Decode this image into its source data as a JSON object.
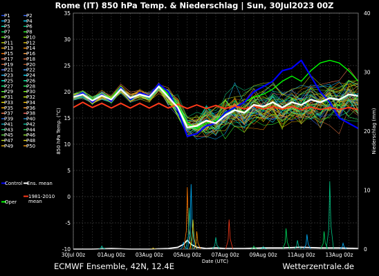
{
  "colors": {
    "background": "#000000",
    "grid": "#3a3a3a",
    "mean": "#ffffff",
    "climate_mean": "#ff3a1a",
    "control": "#0000ff",
    "oper": "#00ff00"
  },
  "chart_data": {
    "type": "line",
    "title": "Rome  (IT)  850 hPa Temp. & Niederschlag | Sun, 30Jul2023 00Z",
    "xlabel": "Date (UTC)",
    "ylabel": "850 hPa Temp. (°C)",
    "y2label": "Niederschlag (mm)",
    "ylim": [
      -10,
      35
    ],
    "y2lim": [
      0,
      40
    ],
    "yticks": [
      -10,
      -5,
      0,
      5,
      10,
      15,
      20,
      25,
      30,
      35
    ],
    "y2ticks": [
      0,
      10,
      20,
      30,
      40
    ],
    "xlim": [
      0,
      15
    ],
    "xticks": [
      {
        "x": 0,
        "label": "30Jul 00z"
      },
      {
        "x": 2,
        "label": "01Aug 00z"
      },
      {
        "x": 4,
        "label": "03Aug 00z"
      },
      {
        "x": 6,
        "label": "05Aug 00z"
      },
      {
        "x": 8,
        "label": "07Aug 00z"
      },
      {
        "x": 10,
        "label": "09Aug 00z"
      },
      {
        "x": 12,
        "label": "11Aug 00z"
      },
      {
        "x": 14,
        "label": "13Aug 00z"
      }
    ],
    "grid": true,
    "legend_position": "left",
    "legend": [
      {
        "label": "P1",
        "color": "#2050ff"
      },
      {
        "label": "P2",
        "color": "#3f6fff"
      },
      {
        "label": "P3",
        "color": "#00b4ff"
      },
      {
        "label": "P4",
        "color": "#00d8ff"
      },
      {
        "label": "P5",
        "color": "#00e6c0"
      },
      {
        "label": "P6",
        "color": "#00cc88"
      },
      {
        "label": "P7",
        "color": "#00e060"
      },
      {
        "label": "P8",
        "color": "#30ff30"
      },
      {
        "label": "P9",
        "color": "#60f000"
      },
      {
        "label": "P10",
        "color": "#90e000"
      },
      {
        "label": "P11",
        "color": "#c0d000"
      },
      {
        "label": "P12",
        "color": "#e0c000"
      },
      {
        "label": "P13",
        "color": "#f0a800"
      },
      {
        "label": "P14",
        "color": "#ff9000"
      },
      {
        "label": "P15",
        "color": "#ff7800"
      },
      {
        "label": "P16",
        "color": "#ffa040"
      },
      {
        "label": "P17",
        "color": "#ff8060"
      },
      {
        "label": "P18",
        "color": "#e07040"
      },
      {
        "label": "P19",
        "color": "#d06030"
      },
      {
        "label": "P20",
        "color": "#b05020"
      },
      {
        "label": "P21",
        "color": "#6080ff"
      },
      {
        "label": "P22",
        "color": "#40a0ff"
      },
      {
        "label": "P23",
        "color": "#20c0ff"
      },
      {
        "label": "P24",
        "color": "#00e0ff"
      },
      {
        "label": "P25",
        "color": "#00ffe0"
      },
      {
        "label": "P26",
        "color": "#00ffb0"
      },
      {
        "label": "P27",
        "color": "#00ff80"
      },
      {
        "label": "P28",
        "color": "#20ff60"
      },
      {
        "label": "P29",
        "color": "#50ff40"
      },
      {
        "label": "P30",
        "color": "#80ff20"
      },
      {
        "label": "P31",
        "color": "#b0ff10"
      },
      {
        "label": "P32",
        "color": "#d0f000"
      },
      {
        "label": "P33",
        "color": "#f0e000"
      },
      {
        "label": "P34",
        "color": "#ffc800"
      },
      {
        "label": "P35",
        "color": "#ffb000"
      },
      {
        "label": "P36",
        "color": "#ff9830"
      },
      {
        "label": "P37",
        "color": "#ff8050"
      },
      {
        "label": "P38",
        "color": "#ff6860"
      },
      {
        "label": "P39",
        "color": "#3070e0"
      },
      {
        "label": "P40",
        "color": "#2090d0"
      },
      {
        "label": "P41",
        "color": "#10b0c0"
      },
      {
        "label": "P42",
        "color": "#00c8a0"
      },
      {
        "label": "P43",
        "color": "#10d080"
      },
      {
        "label": "P44",
        "color": "#30d860"
      },
      {
        "label": "P45",
        "color": "#60e040"
      },
      {
        "label": "P46",
        "color": "#90e830"
      },
      {
        "label": "P47",
        "color": "#c0e020"
      },
      {
        "label": "P48",
        "color": "#e0d010"
      },
      {
        "label": "P49",
        "color": "#f0b810"
      },
      {
        "label": "P50",
        "color": "#ffa010"
      },
      {
        "label": "Control",
        "color": "#0000ff"
      },
      {
        "label": "Ens. mean",
        "color": "#ffffff"
      },
      {
        "label": "1981-2010 mean",
        "color": "#ff3a1a"
      },
      {
        "label": "Oper",
        "color": "#00ff00"
      }
    ],
    "series": [
      {
        "name": "Ens. mean",
        "color": "#ffffff",
        "x": [
          0,
          0.5,
          1,
          1.5,
          2,
          2.5,
          3,
          3.5,
          4,
          4.5,
          5,
          5.5,
          6,
          6.5,
          7,
          7.5,
          8,
          8.5,
          9,
          9.5,
          10,
          10.5,
          11,
          11.5,
          12,
          12.5,
          13,
          13.5,
          14,
          14.5,
          15
        ],
        "values": [
          19.0,
          19.5,
          18.3,
          19.3,
          18.5,
          20.5,
          18.8,
          19.5,
          19.0,
          21.0,
          19.0,
          17.0,
          13.2,
          13.5,
          14.5,
          14.0,
          15.5,
          16.5,
          16.0,
          17.5,
          17.2,
          18.0,
          17.0,
          18.0,
          17.5,
          18.5,
          18.0,
          18.8,
          18.5,
          19.5,
          19.2
        ]
      },
      {
        "name": "1981-2010 mean",
        "color": "#ff3a1a",
        "x": [
          0,
          0.5,
          1,
          1.5,
          2,
          2.5,
          3,
          3.5,
          4,
          4.5,
          5,
          5.5,
          6,
          6.5,
          7,
          7.5,
          8,
          8.5,
          9,
          9.5,
          10,
          10.5,
          11,
          11.5,
          12,
          12.5,
          13,
          13.5,
          14,
          14.5,
          15
        ],
        "values": [
          17.0,
          18.0,
          17.0,
          17.8,
          16.9,
          17.8,
          16.9,
          17.8,
          16.9,
          17.8,
          16.9,
          17.6,
          16.8,
          17.5,
          16.8,
          17.4,
          16.8,
          17.3,
          16.7,
          17.3,
          16.7,
          17.2,
          16.7,
          17.2,
          16.6,
          17.1,
          16.6,
          17.0,
          16.6,
          17.0,
          16.6
        ]
      },
      {
        "name": "Control",
        "color": "#0000ff",
        "x": [
          0,
          0.5,
          1,
          1.5,
          2,
          2.5,
          3,
          3.5,
          4,
          4.5,
          5,
          5.5,
          6,
          6.5,
          7,
          7.5,
          8,
          8.5,
          9,
          9.5,
          10,
          10.5,
          11,
          11.5,
          12,
          12.5,
          13,
          13.5,
          14,
          14.5,
          15
        ],
        "values": [
          19.0,
          19.8,
          18.0,
          19.5,
          18.2,
          20.8,
          18.5,
          19.8,
          19.2,
          21.5,
          20.0,
          16.5,
          11.5,
          12.0,
          13.5,
          14.0,
          16.0,
          17.0,
          18.0,
          20.0,
          21.0,
          22.0,
          24.0,
          24.5,
          26.0,
          23.0,
          20.0,
          18.0,
          15.0,
          14.0,
          13.0
        ]
      },
      {
        "name": "Oper",
        "color": "#00ff00",
        "x": [
          0,
          0.5,
          1,
          1.5,
          2,
          2.5,
          3,
          3.5,
          4,
          4.5,
          5,
          5.5,
          6,
          6.5,
          7,
          7.5,
          8,
          8.5,
          9,
          9.5,
          10,
          10.5,
          11,
          11.5,
          12,
          12.5,
          13,
          13.5,
          14,
          14.5,
          15
        ],
        "values": [
          19.2,
          19.6,
          18.5,
          19.4,
          18.7,
          21.0,
          18.6,
          19.6,
          19.2,
          21.2,
          19.5,
          17.5,
          14.0,
          13.0,
          14.0,
          14.5,
          16.0,
          17.0,
          18.0,
          19.0,
          19.5,
          20.5,
          22.0,
          23.0,
          22.0,
          24.0,
          25.5,
          26.0,
          25.5,
          24.0,
          22.0
        ]
      }
    ],
    "precip_mean": {
      "name": "Ens. mean precipitation",
      "color": "#ffffff",
      "axis": "y2",
      "x": [
        0,
        1,
        2,
        3,
        4,
        5,
        5.5,
        5.8,
        6,
        6.2,
        6.5,
        7,
        7.5,
        8,
        9,
        10,
        11,
        12,
        13,
        14,
        15
      ],
      "values": [
        0,
        0,
        0.1,
        0,
        0,
        0.1,
        0.3,
        0.8,
        1.5,
        0.8,
        0.3,
        0.1,
        0.2,
        0.1,
        0.1,
        0.2,
        0.2,
        0.3,
        0.2,
        0.2,
        0.1
      ]
    },
    "precip_peaks": [
      {
        "x": 1.5,
        "value": 0.5,
        "color": "#00e6c0"
      },
      {
        "x": 4.2,
        "value": 0.2,
        "color": "#e0c000"
      },
      {
        "x": 5.8,
        "value": 1.2,
        "color": "#00b4ff"
      },
      {
        "x": 6.0,
        "value": 10.5,
        "color": "#ff7800"
      },
      {
        "x": 6.1,
        "value": 7.0,
        "color": "#00c8a0"
      },
      {
        "x": 6.2,
        "value": 11.0,
        "color": "#00b4ff"
      },
      {
        "x": 6.3,
        "value": 5.0,
        "color": "#e0d010"
      },
      {
        "x": 6.5,
        "value": 3.0,
        "color": "#ff9000"
      },
      {
        "x": 7.5,
        "value": 2.0,
        "color": "#00c8a0"
      },
      {
        "x": 8.2,
        "value": 5.0,
        "color": "#ff3a1a"
      },
      {
        "x": 9.5,
        "value": 0.5,
        "color": "#00e060"
      },
      {
        "x": 10.0,
        "value": 0.4,
        "color": "#00e6c0"
      },
      {
        "x": 11.2,
        "value": 3.5,
        "color": "#00e060"
      },
      {
        "x": 11.8,
        "value": 1.5,
        "color": "#00c8a0"
      },
      {
        "x": 12.3,
        "value": 2.5,
        "color": "#00b4ff"
      },
      {
        "x": 13.2,
        "value": 3.0,
        "color": "#00e060"
      },
      {
        "x": 13.5,
        "value": 11.5,
        "color": "#00cc88"
      },
      {
        "x": 14.2,
        "value": 1.0,
        "color": "#00b4ff"
      }
    ]
  },
  "footer": {
    "left": "ECMWF Ensemble, 42N, 12.4E",
    "right": "Wetterzentrale.de"
  }
}
